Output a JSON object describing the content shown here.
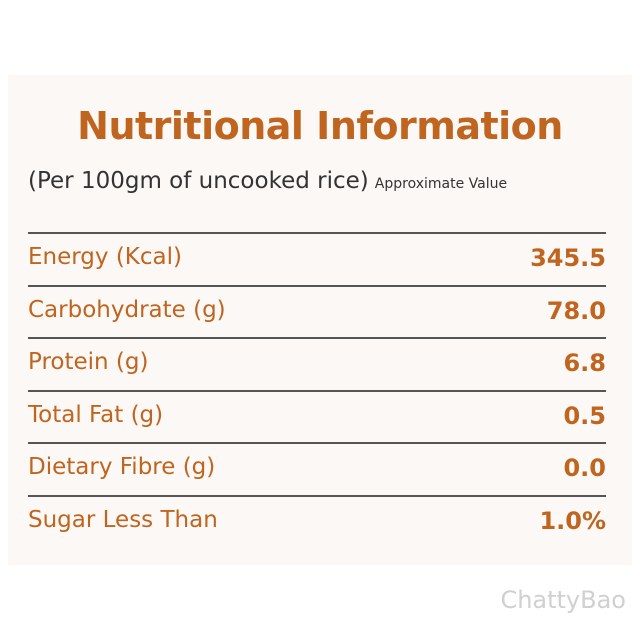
{
  "header": {
    "title": "Nutritional Information",
    "subtitle": "(Per 100gm of uncooked rice)",
    "note": "Approximate Value"
  },
  "table": {
    "rows": [
      [
        "Energy (Kcal)",
        "345.5"
      ],
      [
        "Carbohydrate (g)",
        "78.0"
      ],
      [
        "Protein (g)",
        "6.8"
      ],
      [
        "Total Fat (g)",
        "0.5"
      ],
      [
        "Dietary Fibre (g)",
        "0.0"
      ],
      [
        "Sugar Less Than",
        "1.0%"
      ]
    ]
  },
  "watermark": "ChattyBao"
}
